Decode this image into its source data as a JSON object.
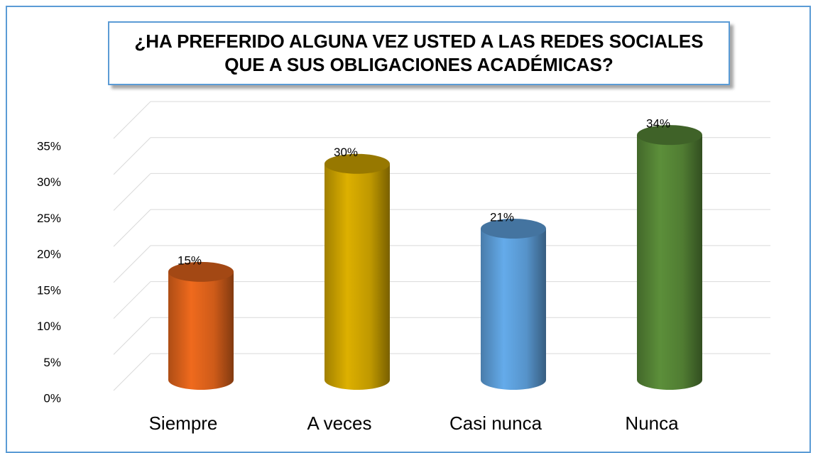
{
  "chart_data": {
    "type": "bar",
    "title": "¿HA PREFERIDO ALGUNA VEZ  USTED  A LAS REDES SOCIALES QUE A SUS OBLIGACIONES ACADÉMICAS?",
    "categories": [
      "Siempre",
      "A veces",
      "Casi nunca",
      "Nunca"
    ],
    "values": [
      15,
      30,
      21,
      34
    ],
    "value_labels": [
      "15%",
      "30%",
      "21%",
      "34%"
    ],
    "colors": [
      "#d9601a",
      "#c9a000",
      "#5b9bd5",
      "#548235"
    ],
    "ylim": [
      0,
      35
    ],
    "yticks": [
      {
        "value": 0,
        "label": "0%"
      },
      {
        "value": 5,
        "label": "5%"
      },
      {
        "value": 10,
        "label": "10%"
      },
      {
        "value": 15,
        "label": "15%"
      },
      {
        "value": 20,
        "label": "20%"
      },
      {
        "value": 25,
        "label": "25%"
      },
      {
        "value": 30,
        "label": "30%"
      },
      {
        "value": 35,
        "label": "35%"
      }
    ],
    "grid": true
  }
}
